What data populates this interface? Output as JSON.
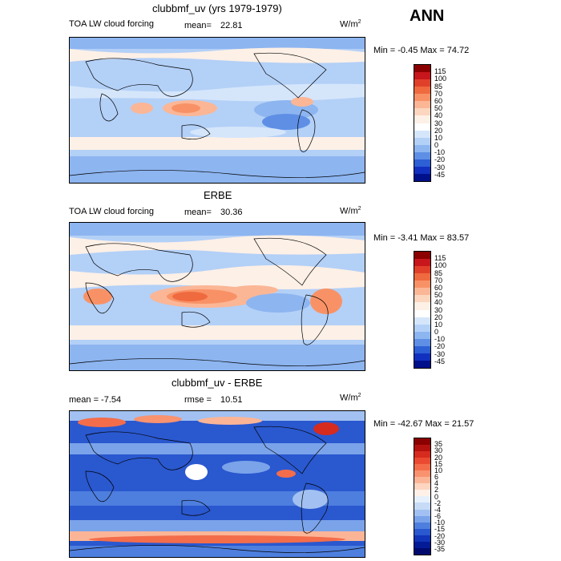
{
  "season": "ANN",
  "units": "W/m",
  "units_sup": "2",
  "panels": [
    {
      "title": "clubbmf_uv (yrs 1979-1979)",
      "variable": "TOA LW cloud forcing",
      "left_stat": "",
      "mean_label": "mean=",
      "mean_value": "22.81",
      "minmax": "Min =  -0.45 Max =  74.72"
    },
    {
      "title": "ERBE",
      "variable": "TOA LW cloud forcing",
      "left_stat": "",
      "mean_label": "mean=",
      "mean_value": "30.36",
      "minmax": "Min =  -3.41 Max =  83.57"
    },
    {
      "title": "clubbmf_uv - ERBE",
      "variable": "",
      "left_stat": "mean =   -7.54",
      "mean_label": "rmse =",
      "mean_value": "10.51",
      "minmax": "Min = -42.67 Max =  21.57"
    }
  ],
  "colorbars": {
    "field": {
      "labels": [
        "115",
        "100",
        "85",
        "70",
        "60",
        "50",
        "40",
        "30",
        "20",
        "10",
        "0",
        "-10",
        "-20",
        "-30",
        "-45"
      ],
      "colors": [
        "#8b0000",
        "#c8161d",
        "#e0402a",
        "#ef6a3f",
        "#f89266",
        "#fbb696",
        "#fcd6bf",
        "#fdf0e6",
        "#ffffff",
        "#d5e6fb",
        "#b3d0f7",
        "#8db5f0",
        "#5e8fe5",
        "#2d5fd5",
        "#1230bf",
        "#00108a"
      ]
    },
    "diff": {
      "labels": [
        "35",
        "30",
        "20",
        "15",
        "10",
        "6",
        "4",
        "2",
        "0",
        "-2",
        "-4",
        "-6",
        "-10",
        "-15",
        "-20",
        "-30",
        "-35"
      ],
      "colors": [
        "#8b0000",
        "#b3120f",
        "#d62b1f",
        "#ea4a31",
        "#f36d4b",
        "#f8926f",
        "#fbb596",
        "#fdd5c1",
        "#fff0e8",
        "#e6f0fc",
        "#c7dbf7",
        "#a2c1f2",
        "#7aa3ea",
        "#4e7fde",
        "#2a58cf",
        "#1234b8",
        "#031b96",
        "#000a6e"
      ]
    }
  }
}
